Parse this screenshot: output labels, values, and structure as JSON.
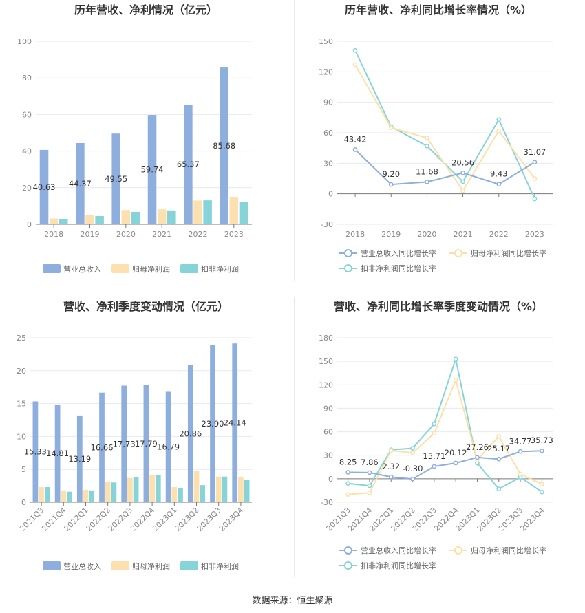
{
  "chart_data": [
    {
      "id": "annual_amount",
      "type": "bar",
      "title": "历年营收、净利情况（亿元）",
      "categories": [
        "2018",
        "2019",
        "2020",
        "2021",
        "2022",
        "2023"
      ],
      "ylim": [
        0,
        100
      ],
      "yticks": [
        0,
        20,
        40,
        60,
        80,
        100
      ],
      "series": [
        {
          "name": "营业总收入",
          "color": "#8eaedd",
          "values": [
            40.63,
            44.37,
            49.55,
            59.74,
            65.37,
            85.68
          ],
          "labels": [
            "40.63",
            "44.37",
            "49.55",
            "59.74",
            "65.37",
            "85.68"
          ]
        },
        {
          "name": "归母净利润",
          "color": "#fde0b0",
          "values": [
            3.2,
            5.2,
            7.8,
            8.2,
            13.0,
            15.0
          ]
        },
        {
          "name": "扣非净利润",
          "color": "#86d4d8",
          "values": [
            2.8,
            4.5,
            6.8,
            7.6,
            13.1,
            12.4
          ]
        }
      ]
    },
    {
      "id": "annual_growth",
      "type": "line",
      "title": "历年营收、净利同比增长率情况（%）",
      "categories": [
        "2018",
        "2019",
        "2020",
        "2021",
        "2022",
        "2023"
      ],
      "ylim": [
        -30,
        150
      ],
      "yticks": [
        -30,
        0,
        30,
        60,
        90,
        120,
        150
      ],
      "series": [
        {
          "name": "营业总收入同比增长率",
          "color": "#8eaedd",
          "values": [
            43.42,
            9.2,
            11.68,
            20.56,
            9.43,
            31.07
          ],
          "labels": [
            "43.42",
            "9.20",
            "11.68",
            "20.56",
            "9.43",
            "31.07"
          ]
        },
        {
          "name": "归母净利润同比增长率",
          "color": "#fde0a8",
          "values": [
            127,
            65,
            55,
            3,
            62,
            15
          ]
        },
        {
          "name": "扣非净利润同比增长率",
          "color": "#86d4d8",
          "values": [
            141,
            66,
            47,
            12,
            73,
            -5
          ]
        }
      ]
    },
    {
      "id": "quarterly_amount",
      "type": "bar",
      "title": "营收、净利季度变动情况（亿元）",
      "categories": [
        "2021Q3",
        "2021Q4",
        "2022Q1",
        "2022Q2",
        "2022Q3",
        "2022Q4",
        "2023Q1",
        "2023Q2",
        "2023Q3",
        "2023Q4"
      ],
      "ylim": [
        0,
        25
      ],
      "yticks": [
        0,
        5,
        10,
        15,
        20,
        25
      ],
      "series": [
        {
          "name": "营业总收入",
          "color": "#8eaedd",
          "values": [
            15.33,
            14.81,
            13.19,
            16.66,
            17.73,
            17.79,
            16.79,
            20.86,
            23.9,
            24.14
          ],
          "labels": [
            "15.33",
            "14.81",
            "13.19",
            "16.66",
            "17.73",
            "17.79",
            "16.79",
            "20.86",
            "23.90",
            "24.14"
          ]
        },
        {
          "name": "归母净利润",
          "color": "#fde0b0",
          "values": [
            2.3,
            1.8,
            1.9,
            3.1,
            3.7,
            4.1,
            2.3,
            4.8,
            3.9,
            3.8
          ]
        },
        {
          "name": "扣非净利润",
          "color": "#86d4d8",
          "values": [
            2.3,
            1.6,
            1.8,
            3.0,
            3.8,
            4.1,
            2.2,
            2.6,
            3.9,
            3.4
          ]
        }
      ]
    },
    {
      "id": "quarterly_growth",
      "type": "line",
      "title": "营收、净利同比增长率季度变动情况（%）",
      "categories": [
        "2021Q3",
        "2021Q4",
        "2022Q1",
        "2022Q2",
        "2022Q3",
        "2022Q4",
        "2023Q1",
        "2023Q2",
        "2023Q3",
        "2023Q4"
      ],
      "ylim": [
        -30,
        180
      ],
      "yticks": [
        -30,
        0,
        30,
        60,
        90,
        120,
        150,
        180
      ],
      "series": [
        {
          "name": "营业总收入同比增长率",
          "color": "#8eaedd",
          "values": [
            8.25,
            7.86,
            2.32,
            -0.3,
            15.71,
            20.12,
            27.26,
            25.17,
            34.77,
            35.73
          ],
          "labels": [
            "8.25",
            "7.86",
            "2.32",
            "-0.30",
            "15.71",
            "20.12",
            "27.26",
            "25.17",
            "34.77",
            "35.73"
          ]
        },
        {
          "name": "归母净利润同比增长率",
          "color": "#fde0a8",
          "values": [
            -20,
            -18,
            36,
            33,
            58,
            126,
            24,
            54,
            6,
            -7
          ]
        },
        {
          "name": "扣非净利润同比增长率",
          "color": "#86d4d8",
          "values": [
            -6,
            -9,
            37,
            39,
            70,
            153,
            20,
            -13,
            2,
            -17
          ]
        }
      ]
    }
  ],
  "footer": {
    "source": "数据来源：恒生聚源"
  }
}
